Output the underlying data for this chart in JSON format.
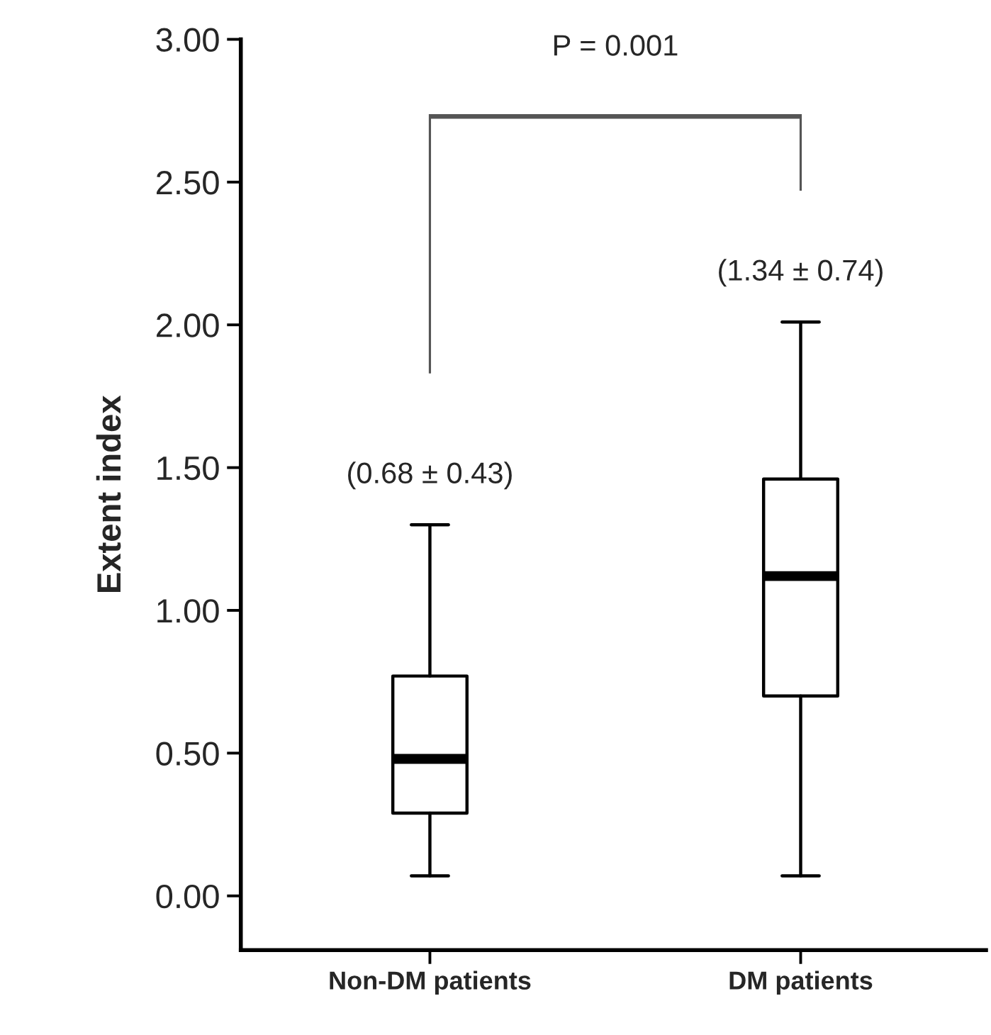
{
  "chart_data": {
    "type": "box",
    "ylabel": "Extent index",
    "categories": [
      "Non-DM patients",
      "DM patients"
    ],
    "boxes": [
      {
        "low": 0.07,
        "q1": 0.29,
        "median": 0.48,
        "q3": 0.77,
        "high": 1.3
      },
      {
        "low": 0.07,
        "q1": 0.7,
        "median": 1.12,
        "q3": 1.46,
        "high": 2.01
      }
    ],
    "ylim": [
      -0.19,
      3.0
    ],
    "yticks": [
      {
        "value": 0,
        "label": "0.00"
      },
      {
        "value": 0.5,
        "label": "0.50"
      },
      {
        "value": 1.0,
        "label": "1.00"
      },
      {
        "value": 1.5,
        "label": "1.50"
      },
      {
        "value": 2.0,
        "label": "2.00"
      },
      {
        "value": 2.5,
        "label": "2.50"
      },
      {
        "value": 3.0,
        "label": "3.00"
      }
    ],
    "annotations": [
      {
        "text": "(0.68 ± 0.43)",
        "x": "Non-DM patients",
        "y": 1.3
      },
      {
        "text": "(1.34 ± 0.74)",
        "x": "DM patients",
        "y": 2.01
      },
      "P = 0.001"
    ],
    "grid": false,
    "legend": false
  }
}
